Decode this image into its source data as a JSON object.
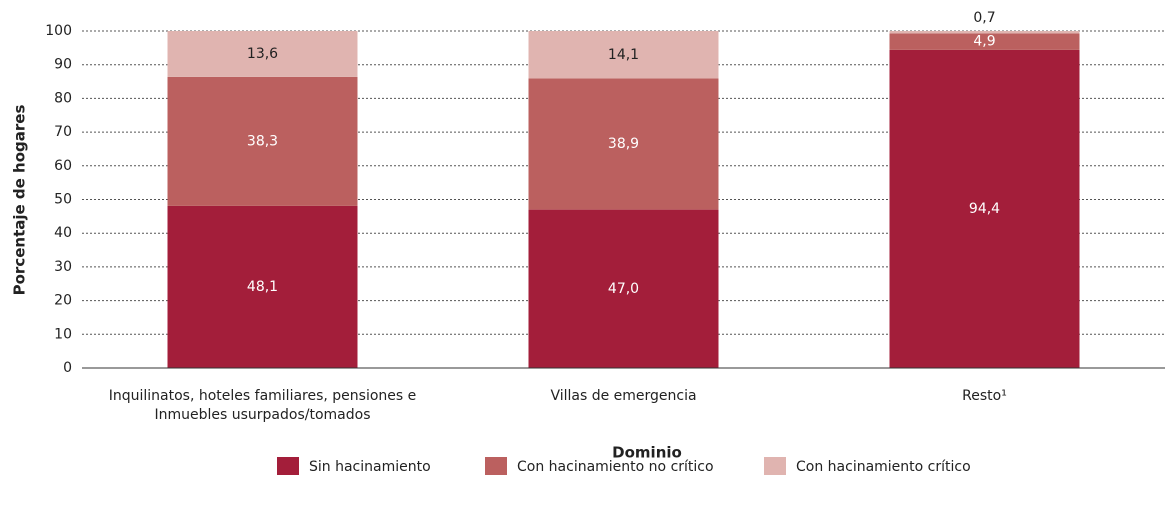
{
  "chart_data": {
    "type": "stacked_bar",
    "y_label": "Porcentaje de hogares",
    "x_label": "Dominio",
    "categories": [
      "Inquilinatos, hoteles familiares, pensiones e Inmuebles usurpados/tomados",
      "Villas de emergencia",
      "Resto¹"
    ],
    "series": [
      {
        "name": "Sin hacinamiento",
        "color": "#a31e3a",
        "values": [
          48.1,
          47.0,
          94.4
        ],
        "value_labels": [
          "48,1",
          "47,0",
          "94,4"
        ]
      },
      {
        "name": "Con hacinamiento no crítico",
        "color": "#bb605f",
        "values": [
          38.3,
          38.9,
          4.9
        ],
        "value_labels": [
          "38,3",
          "38,9",
          "4,9"
        ]
      },
      {
        "name": "Con hacinamiento crítico",
        "color": "#e0b4b0",
        "values": [
          13.6,
          14.1,
          0.7
        ],
        "value_labels": [
          "13,6",
          "14,1",
          "0,7"
        ]
      }
    ],
    "ylim": [
      0,
      100
    ],
    "yticks": [
      0,
      10,
      20,
      30,
      40,
      50,
      60,
      70,
      80,
      90,
      100
    ],
    "grid": true
  }
}
